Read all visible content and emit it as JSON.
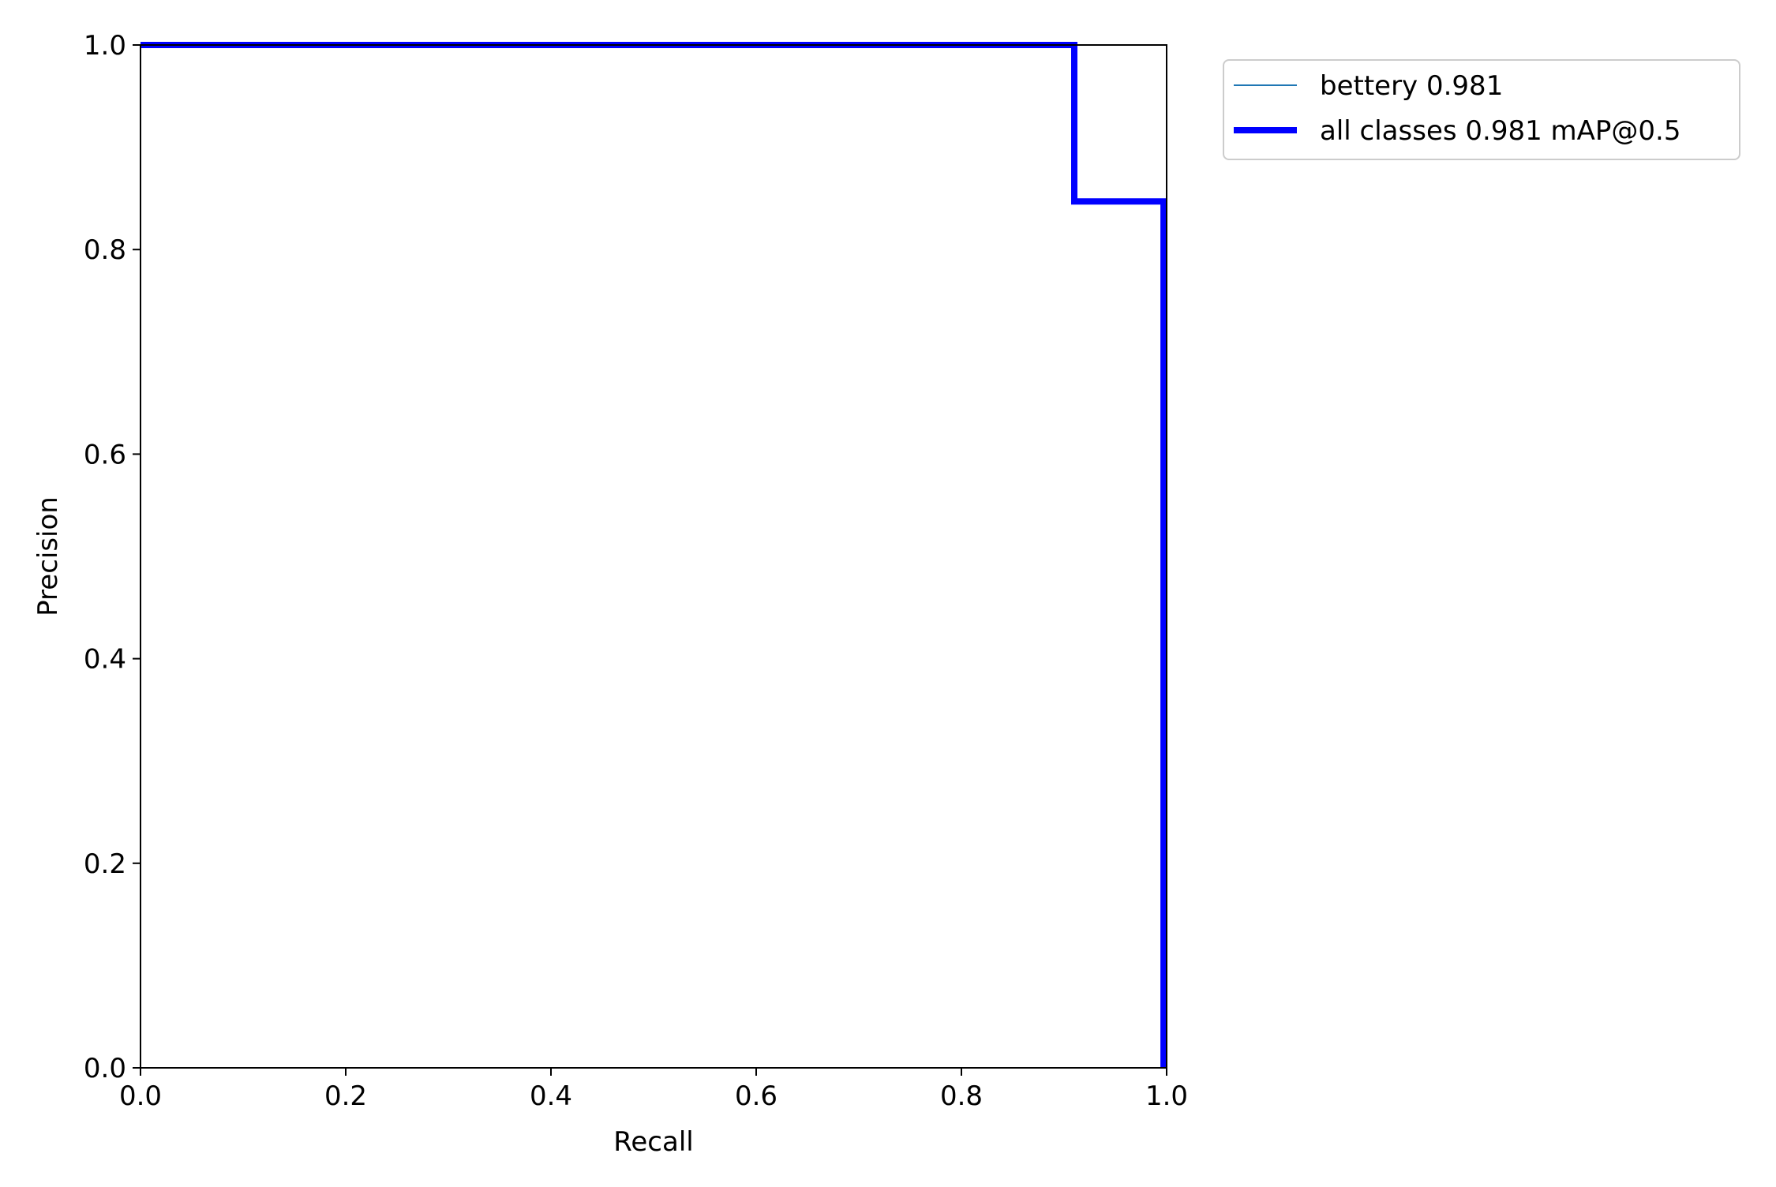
{
  "chart_data": {
    "type": "line",
    "title": "",
    "xlabel": "Recall",
    "ylabel": "Precision",
    "xlim": [
      0,
      1
    ],
    "ylim": [
      0,
      1
    ],
    "xticks": [
      "0.0",
      "0.2",
      "0.4",
      "0.6",
      "0.8",
      "1.0"
    ],
    "yticks": [
      "0.0",
      "0.2",
      "0.4",
      "0.6",
      "0.8",
      "1.0"
    ],
    "grid": false,
    "legend_position": "outside upper right",
    "series": [
      {
        "name": "bettery 0.981",
        "color": "#1f77b4",
        "style": "thin",
        "x": [
          0.0,
          0.91,
          0.91,
          0.997,
          0.997
        ],
        "y": [
          1.0,
          1.0,
          0.847,
          0.847,
          0.0
        ]
      },
      {
        "name": "all classes 0.981 mAP@0.5",
        "color": "#0000ff",
        "style": "thick",
        "x": [
          0.0,
          0.91,
          0.91,
          0.997,
          0.997
        ],
        "y": [
          1.0,
          1.0,
          0.847,
          0.847,
          0.0
        ]
      }
    ]
  }
}
